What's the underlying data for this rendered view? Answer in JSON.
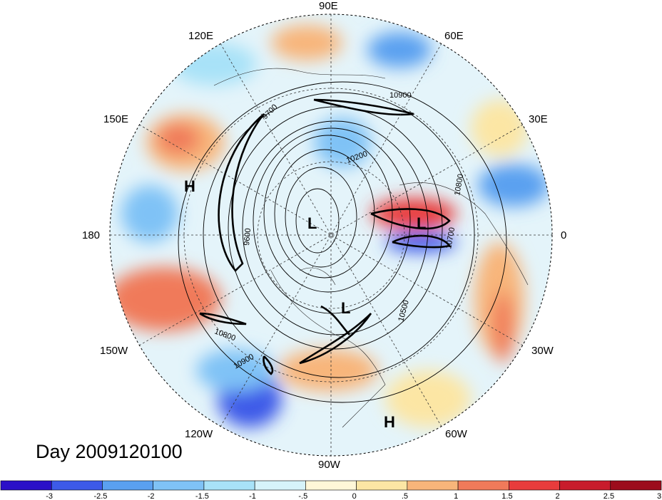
{
  "title": "Day 2009120100",
  "longitude_labels": [
    "90E",
    "120E",
    "60E",
    "150E",
    "30E",
    "180",
    "0",
    "150W",
    "30W",
    "120W",
    "60W",
    "90W"
  ],
  "pressure_centers": [
    "H",
    "L",
    "L",
    "L",
    "H"
  ],
  "contour_labels": [
    "10900",
    "10200",
    "10800",
    "9600",
    "10500",
    "10900",
    "10800",
    "10700",
    "9700"
  ],
  "colorbar": {
    "colors": [
      "#2b10c8",
      "#3d5ae8",
      "#5aa0f0",
      "#7fc2f6",
      "#a8e2f8",
      "#d6f3fa",
      "#fff7d8",
      "#fce6a4",
      "#f8b57a",
      "#f07a5a",
      "#e83c3c",
      "#c81c2c",
      "#9c0c1c"
    ],
    "tick_labels": [
      "-3",
      "-2.5",
      "-2",
      "-1.5",
      "-1",
      "-.5",
      "0",
      ".5",
      "1",
      "1.5",
      "2",
      "2.5",
      "3"
    ]
  }
}
